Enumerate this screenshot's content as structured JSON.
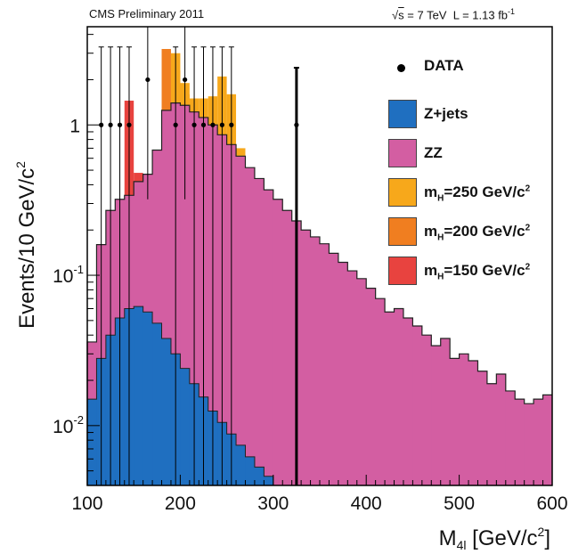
{
  "header": {
    "left": "CMS Preliminary 2011",
    "right_sqrt": "s",
    "right_energy": "= 7 TeV",
    "right_lumi": "L = 1.13 fb",
    "right_lumi_exp": "-1"
  },
  "legend": {
    "data": "DATA",
    "zjets": "Z+jets",
    "zz": "ZZ",
    "mh250": {
      "m": "m",
      "sub": "H",
      "rest": "=250 GeV/c",
      "sup": "2"
    },
    "mh200": {
      "m": "m",
      "sub": "H",
      "rest": "=200 GeV/c",
      "sup": "2"
    },
    "mh150": {
      "m": "m",
      "sub": "H",
      "rest": "=150 GeV/c",
      "sup": "2"
    }
  },
  "colors": {
    "zjets": "#1f6fc0",
    "zz": "#d35ea2",
    "mh250": "#f7a81b",
    "mh200": "#f07e20",
    "mh150": "#e8433f",
    "data": "#000000"
  },
  "chart_data": {
    "type": "histogram",
    "xlabel": "M",
    "xlabel_sub": "4l",
    "xlabel_unit": "[GeV/c",
    "xlabel_unit_sup": "2",
    "xlabel_end": "]",
    "ylabel": "Events/10 GeV/c",
    "ylabel_sup": "2",
    "xlim": [
      100,
      600
    ],
    "ylim": [
      0.004,
      4.5
    ],
    "yscale": "log",
    "xticks": [
      100,
      200,
      300,
      400,
      500,
      600
    ],
    "yticks": [
      {
        "value": 0.01,
        "base": "10",
        "exp": "-2"
      },
      {
        "value": 0.1,
        "base": "10",
        "exp": "-1"
      },
      {
        "value": 1,
        "base": "1",
        "exp": ""
      }
    ],
    "bin_width": 10,
    "bin_starts": [
      100,
      110,
      120,
      130,
      140,
      150,
      160,
      170,
      180,
      190,
      200,
      210,
      220,
      230,
      240,
      250,
      260,
      270,
      280,
      290,
      300,
      310,
      320,
      330,
      340,
      350,
      360,
      370,
      380,
      390,
      400,
      410,
      420,
      430,
      440,
      450,
      460,
      470,
      480,
      490,
      500,
      510,
      520,
      530,
      540,
      550,
      560,
      570,
      580,
      590
    ],
    "zjets": [
      0.015,
      0.028,
      0.04,
      0.052,
      0.06,
      0.062,
      0.057,
      0.048,
      0.038,
      0.03,
      0.024,
      0.019,
      0.0155,
      0.0125,
      0.0105,
      0.0088,
      0.0074,
      0.0062,
      0.0053,
      0.0046,
      0.004,
      0.0036,
      0.0032,
      0.0029,
      0.0027,
      0.0025,
      0.0023,
      0.0021,
      0.0019,
      0.0017,
      0.0015,
      0.0013,
      0.0012,
      0.0011,
      0.001,
      0.0009,
      0.0009,
      0.0008,
      0.0008,
      0.0007,
      0.0007,
      0.0006,
      0.0006,
      0.0006,
      0.0005,
      0.0005,
      0.0005,
      0.0005,
      0.0004,
      0.0004
    ],
    "zz_total": [
      0.036,
      0.16,
      0.27,
      0.32,
      0.34,
      0.42,
      0.47,
      0.68,
      1.25,
      1.4,
      1.35,
      1.22,
      1.12,
      1.0,
      0.86,
      0.74,
      0.62,
      0.52,
      0.44,
      0.37,
      0.32,
      0.27,
      0.23,
      0.2,
      0.18,
      0.162,
      0.14,
      0.122,
      0.107,
      0.095,
      0.082,
      0.07,
      0.057,
      0.06,
      0.052,
      0.046,
      0.04,
      0.034,
      0.038,
      0.028,
      0.03,
      0.027,
      0.023,
      0.019,
      0.022,
      0.017,
      0.015,
      0.014,
      0.015,
      0.016
    ],
    "signals": [
      {
        "name": "mh150",
        "bin_starts": [
          140,
          150
        ],
        "values": [
          1.45,
          0.48
        ]
      },
      {
        "name": "mh200",
        "bin_starts": [
          180,
          190,
          200,
          210
        ],
        "values": [
          3.2,
          2.3,
          1.6,
          1.25
        ]
      },
      {
        "name": "mh250",
        "bin_starts": [
          190,
          200,
          210,
          220,
          230,
          240,
          250,
          260
        ],
        "values": [
          3.0,
          1.9,
          1.5,
          1.5,
          1.55,
          2.1,
          1.6,
          0.7
        ]
      }
    ],
    "data_points": [
      {
        "x": 115,
        "y": 1,
        "err_low": 0.004,
        "err_high": 3.3
      },
      {
        "x": 125,
        "y": 1,
        "err_low": 0.004,
        "err_high": 3.3
      },
      {
        "x": 135,
        "y": 1,
        "err_low": 0.004,
        "err_high": 3.3
      },
      {
        "x": 145,
        "y": 1,
        "err_low": 0.004,
        "err_high": 3.3
      },
      {
        "x": 165,
        "y": 2,
        "err_low": 0.32,
        "err_high": 4.5
      },
      {
        "x": 195,
        "y": 1,
        "err_low": 0.004,
        "err_high": 3.3
      },
      {
        "x": 205,
        "y": 2,
        "err_low": 0.32,
        "err_high": 4.5
      },
      {
        "x": 215,
        "y": 1,
        "err_low": 0.004,
        "err_high": 3.3
      },
      {
        "x": 225,
        "y": 1,
        "err_low": 0.004,
        "err_high": 3.3
      },
      {
        "x": 235,
        "y": 1,
        "err_low": 0.004,
        "err_high": 3.3
      },
      {
        "x": 245,
        "y": 1,
        "err_low": 0.004,
        "err_high": 3.3
      },
      {
        "x": 255,
        "y": 1,
        "err_low": 0.004,
        "err_high": 3.3
      },
      {
        "x": 325,
        "y": 1,
        "err_low": 0.004,
        "err_high": 2.4
      }
    ]
  }
}
